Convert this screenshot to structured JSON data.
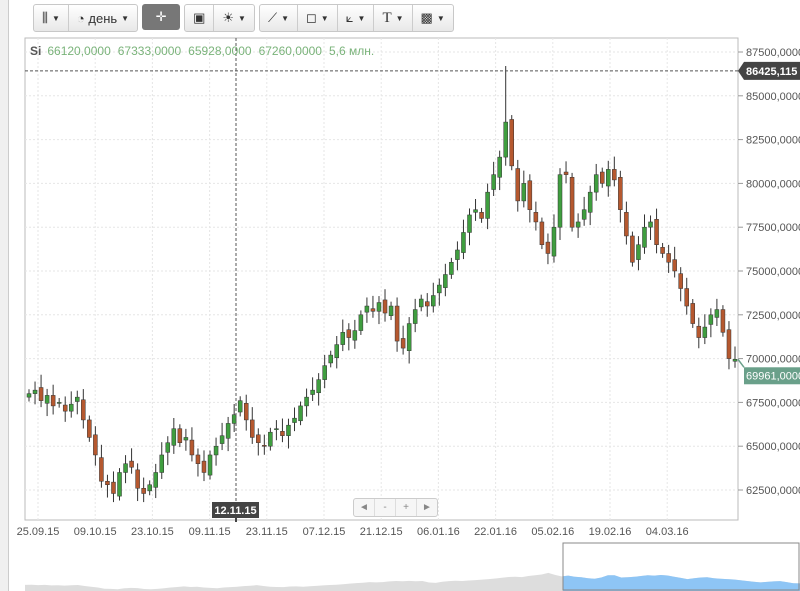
{
  "toolbar": {
    "chart_type_icon": "candlestick-icon",
    "period_label": "день",
    "period_icon": "clock-icon",
    "crosshair_icon": "crosshair-icon",
    "indicators_icon": "bar-chart-icon",
    "studies_icon": "lightbulb-icon",
    "line_icon": "line-tool-icon",
    "shape_icon": "rectangle-tool-icon",
    "fib_icon": "trend-tool-icon",
    "text_label": "T",
    "image_icon": "image-icon"
  },
  "legend": {
    "symbol": "Si",
    "open": "66120,0000",
    "high": "67333,0000",
    "low": "65928,0000",
    "close": "67260,0000",
    "volume": "5,6 млн."
  },
  "navigator": {
    "left": "◄",
    "minus": "-",
    "plus": "+",
    "right": "►"
  },
  "colors": {
    "up": "#3f9e3f",
    "down": "#b5582f",
    "crosshair_label": "#444444",
    "last_price": "#6aa08a",
    "navigator_window": "#8ec5f5",
    "navigator_fill": "#dddddd"
  },
  "chart_data": {
    "type": "candlestick",
    "ylim": [
      61500,
      88500
    ],
    "yticks": [
      "87500,0000",
      "85000,0000",
      "82500,0000",
      "80000,0000",
      "77500,0000",
      "75000,0000",
      "72500,0000",
      "70000,0000",
      "67500,0000",
      "65000,0000",
      "62500,0000"
    ],
    "ytick_values": [
      87500,
      85000,
      82500,
      80000,
      77500,
      75000,
      72500,
      70000,
      67500,
      65000,
      62500
    ],
    "xticks": [
      "25.09.15",
      "09.10.15",
      "23.10.15",
      "09.11.15",
      "23.11.15",
      "07.12.15",
      "21.12.15",
      "06.01.16",
      "22.01.16",
      "05.02.16",
      "19.02.16",
      "04.03.16"
    ],
    "crosshair_date": "12.11.15",
    "crosshair_price": "86425,115",
    "last_price": "69961,0000",
    "last_price_value": 69961,
    "crosshair_price_value": 86425,
    "closes": [
      68000,
      68200,
      67600,
      67900,
      67300,
      67500,
      67000,
      67400,
      67800,
      66500,
      65500,
      64500,
      63000,
      62800,
      62300,
      63500,
      64000,
      63800,
      62600,
      62300,
      62800,
      63500,
      64500,
      65200,
      66000,
      65200,
      65500,
      64500,
      64000,
      63500,
      64500,
      65000,
      65600,
      66300,
      66800,
      67600,
      66500,
      65500,
      65200,
      65000,
      65800,
      66000,
      65600,
      66200,
      66600,
      67300,
      67800,
      68200,
      68800,
      69600,
      70200,
      70800,
      71500,
      71200,
      71600,
      72500,
      73000,
      72700,
      73200,
      72600,
      73000,
      71000,
      70600,
      72000,
      72800,
      73400,
      73000,
      73600,
      74200,
      74800,
      75500,
      76200,
      77200,
      78200,
      78500,
      78000,
      79500,
      80500,
      81500,
      83500,
      81000,
      79000,
      80000,
      78500,
      77800,
      76500,
      76000,
      77500,
      80500,
      80500,
      77500,
      77800,
      78500,
      79500,
      80500,
      80000,
      80800,
      80200,
      78500,
      77000,
      75500,
      76500,
      77500,
      77800,
      76500,
      76000,
      75500,
      75000,
      74000,
      73000,
      72000,
      71200,
      71800,
      72500,
      72800,
      71500,
      70000,
      69961
    ]
  }
}
